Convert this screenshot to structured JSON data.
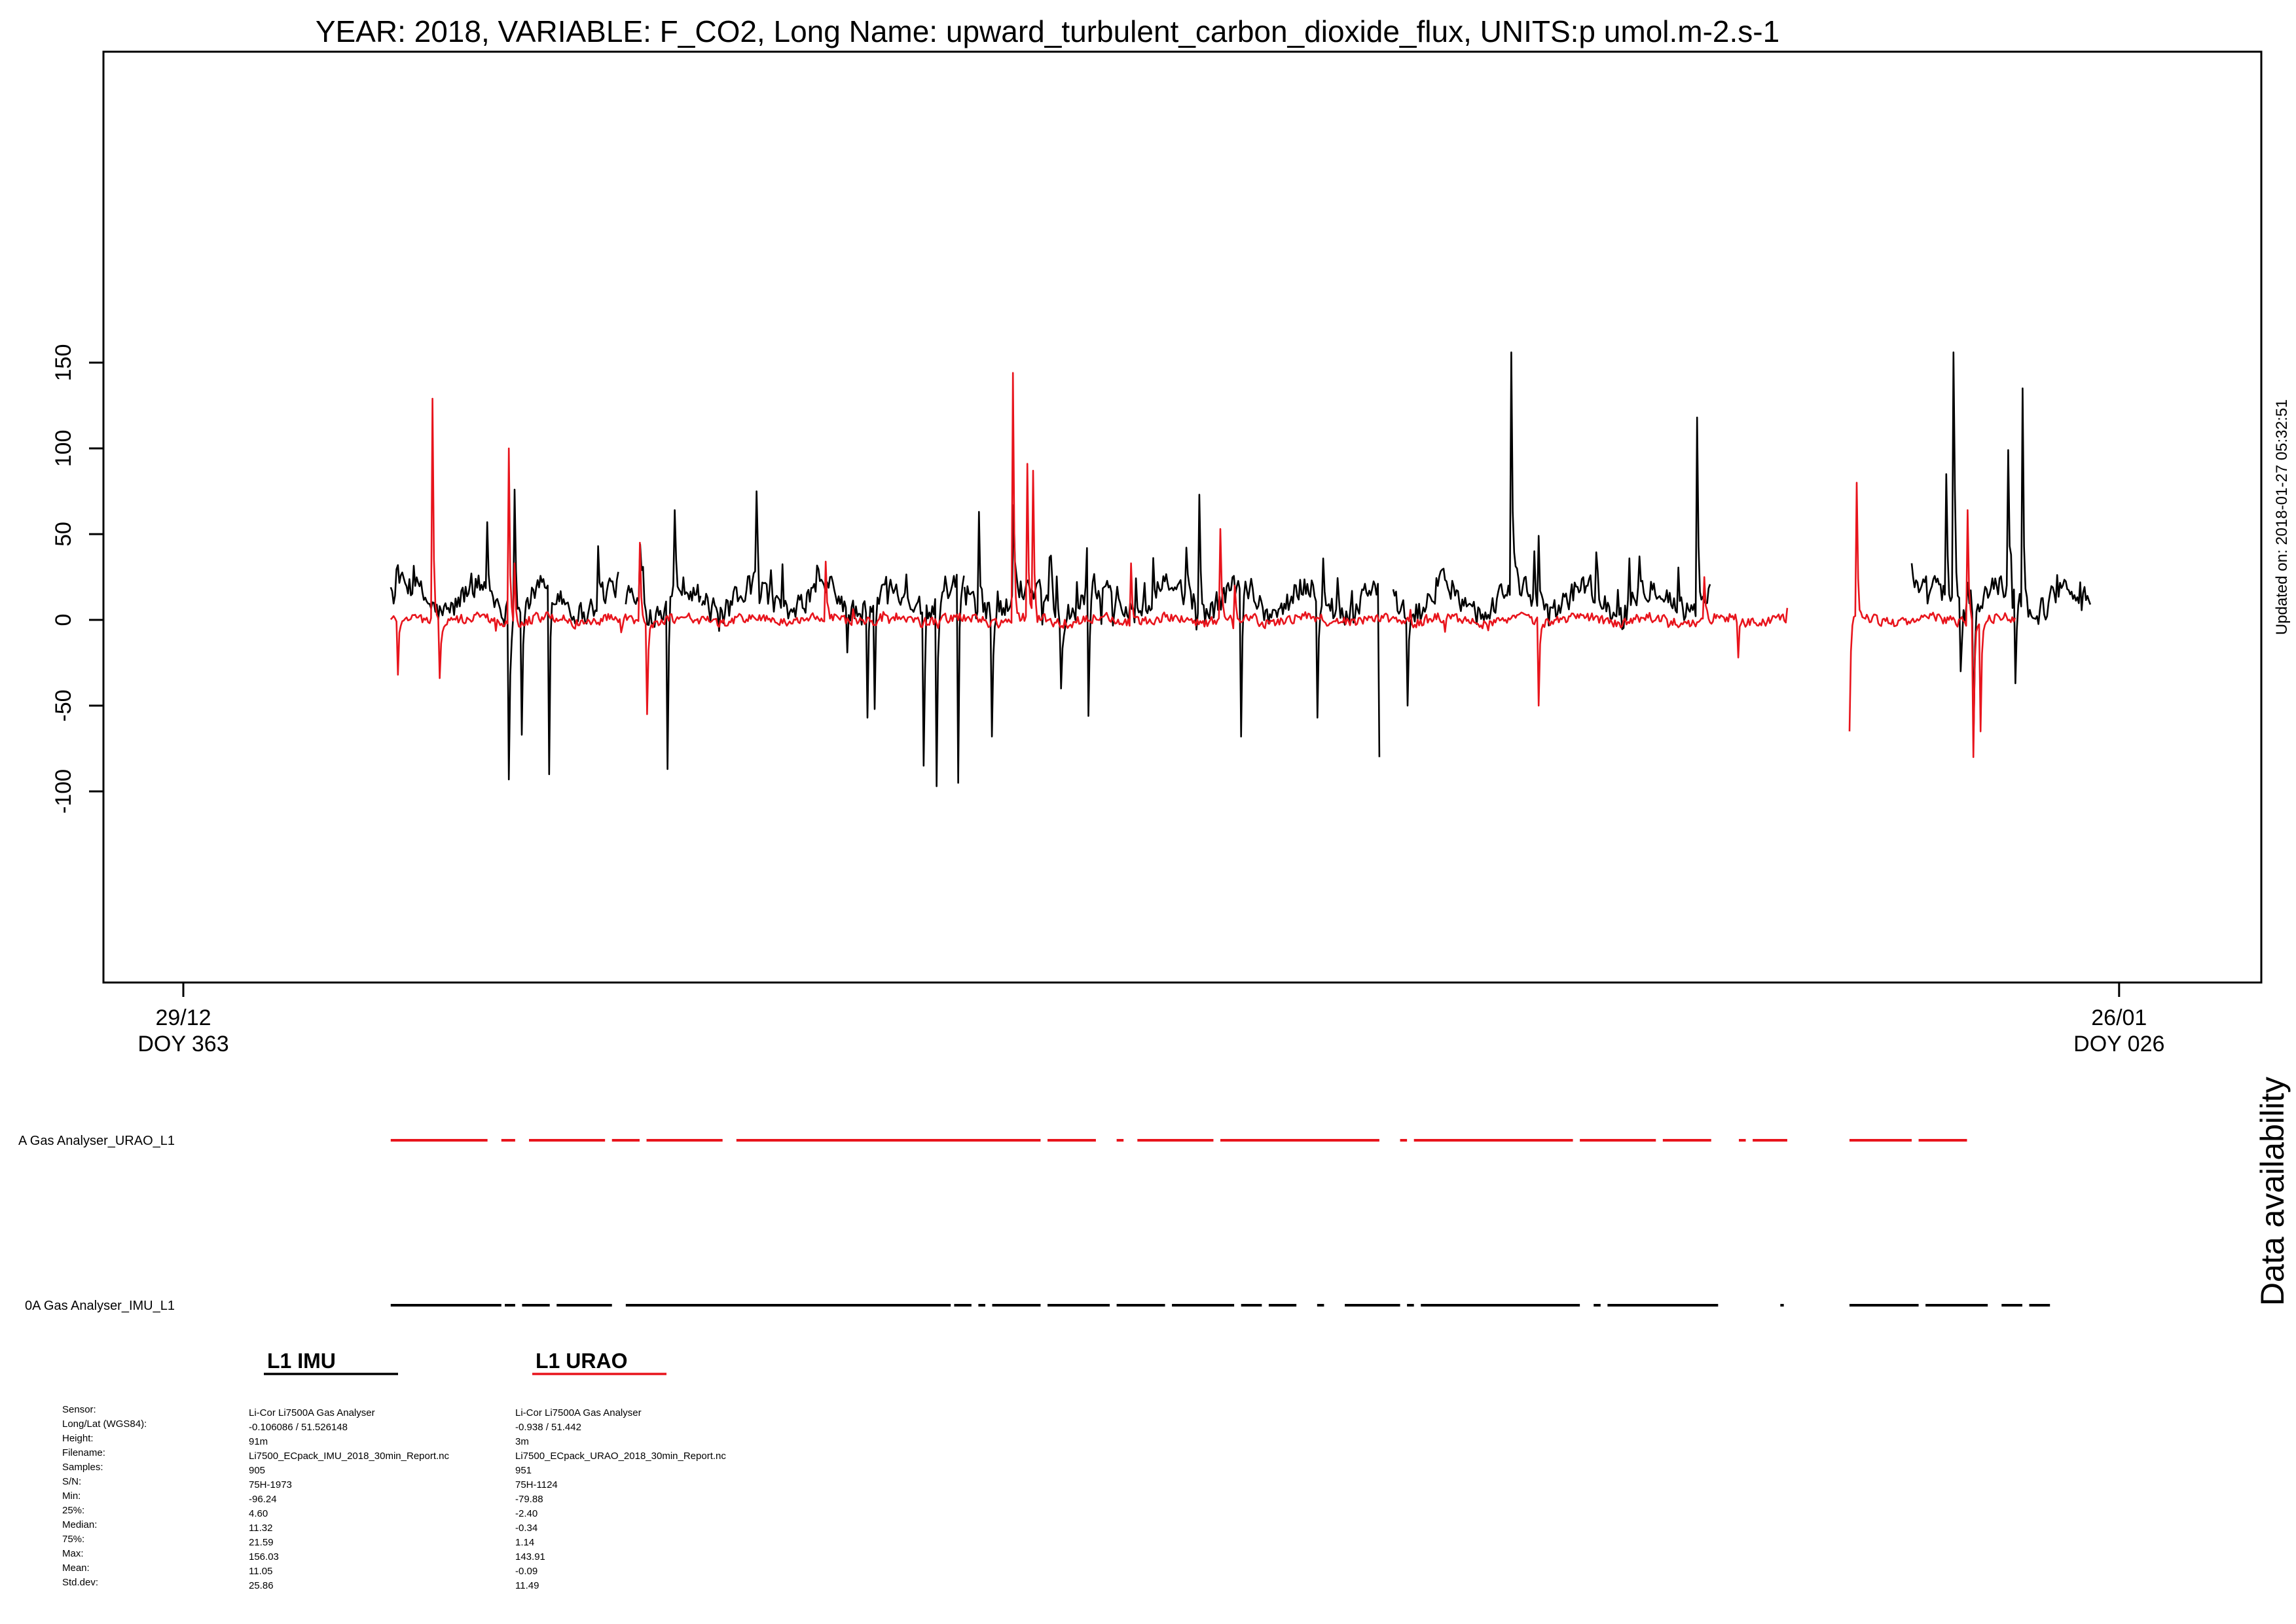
{
  "chart_data": {
    "type": "line",
    "title": "YEAR: 2018, VARIABLE: F_CO2, Long Name: upward_turbulent_carbon_dioxide_flux, UNITS:p umol.m-2.s-1",
    "updated": "Updated on: 2018-01-27 05:32:51",
    "ylim": [
      -105,
      165
    ],
    "yticks": [
      "150",
      "100",
      "50",
      "0",
      "-50",
      "-100"
    ],
    "ytick_values": [
      150,
      100,
      50,
      0,
      -50,
      -100
    ],
    "xlim": [
      -0.6,
      28.4
    ],
    "xticks": [
      {
        "value": 0,
        "date": "29/12",
        "doy": "DOY 363"
      },
      {
        "value": 28,
        "date": "26/01",
        "doy": "DOY 026"
      }
    ],
    "series": [
      {
        "name": "L1 IMU",
        "color": "#000000",
        "stats": {
          "samples": 905,
          "min": -96.24,
          "q25": 4.6,
          "median": 11.32,
          "q75": 21.59,
          "max": 156.03,
          "mean": 11.05,
          "std": 25.86
        },
        "segments": [
          {
            "start": 3.0,
            "end": 6.3,
            "peaks": [
              [
                4.4,
                57
              ],
              [
                4.7,
                -93
              ],
              [
                4.8,
                76
              ],
              [
                4.9,
                -67
              ],
              [
                5.3,
                -90
              ],
              [
                6.0,
                43
              ]
            ]
          },
          {
            "start": 6.4,
            "end": 7.5,
            "peaks": [
              [
                6.6,
                44
              ],
              [
                7.0,
                -87
              ],
              [
                7.1,
                64
              ]
            ]
          },
          {
            "start": 7.5,
            "end": 11.3,
            "peaks": [
              [
                8.3,
                75
              ],
              [
                8.5,
                29
              ],
              [
                9.6,
                -19
              ],
              [
                9.9,
                -57
              ],
              [
                10.0,
                -52
              ],
              [
                10.7,
                -85
              ],
              [
                10.9,
                -97
              ],
              [
                11.2,
                -95
              ]
            ]
          },
          {
            "start": 11.3,
            "end": 14.8,
            "peaks": [
              [
                11.5,
                63
              ],
              [
                11.7,
                -68
              ],
              [
                12.0,
                67
              ],
              [
                12.7,
                -40
              ],
              [
                13.1,
                -56
              ],
              [
                14.7,
                73
              ]
            ]
          },
          {
            "start": 14.8,
            "end": 17.3,
            "peaks": [
              [
                15.3,
                -68
              ],
              [
                16.4,
                -57
              ],
              [
                17.3,
                -80
              ]
            ]
          },
          {
            "start": 17.5,
            "end": 22.1,
            "peaks": [
              [
                17.7,
                -50
              ],
              [
                19.2,
                156
              ],
              [
                19.6,
                49
              ],
              [
                21.9,
                118
              ],
              [
                22.1,
                -37
              ]
            ]
          },
          {
            "start": 25.0,
            "end": 27.6,
            "peaks": [
              [
                25.0,
                33
              ],
              [
                25.5,
                85
              ],
              [
                25.6,
                156
              ],
              [
                25.7,
                -30
              ],
              [
                25.9,
                -65
              ],
              [
                26.4,
                99
              ],
              [
                26.5,
                -37
              ],
              [
                26.6,
                135
              ]
            ]
          }
        ]
      },
      {
        "name": "L1 URAO",
        "color": "#e8141c",
        "stats": {
          "samples": 951,
          "min": -79.88,
          "q25": -2.4,
          "median": -0.34,
          "q75": 1.14,
          "max": 143.91,
          "mean": -0.09,
          "std": 11.49
        },
        "segments": [
          {
            "start": 3.0,
            "end": 22.2,
            "peaks": [
              [
                3.1,
                -32
              ],
              [
                3.6,
                129
              ],
              [
                3.7,
                -34
              ],
              [
                4.7,
                100
              ],
              [
                4.8,
                33
              ],
              [
                6.6,
                45
              ],
              [
                6.7,
                -55
              ],
              [
                9.3,
                34
              ],
              [
                12.0,
                144
              ],
              [
                12.2,
                91
              ],
              [
                12.3,
                87
              ],
              [
                13.7,
                33
              ],
              [
                15.0,
                53
              ],
              [
                15.2,
                20
              ],
              [
                19.6,
                -50
              ],
              [
                22.0,
                25
              ]
            ]
          },
          {
            "start": 22.2,
            "end": 23.2,
            "peaks": [
              [
                22.5,
                -22
              ],
              [
                23.2,
                7
              ]
            ]
          },
          {
            "start": 24.1,
            "end": 26.5,
            "peaks": [
              [
                24.1,
                -65
              ],
              [
                24.2,
                80
              ],
              [
                25.8,
                64
              ],
              [
                25.9,
                -80
              ],
              [
                26.0,
                -65
              ]
            ]
          }
        ]
      }
    ]
  },
  "availability": {
    "label": "Data availability",
    "rows": [
      {
        "label": "A Gas Analyser_URAO_L1",
        "color": "#e8141c",
        "segments": [
          [
            3.0,
            4.4
          ],
          [
            4.6,
            4.8
          ],
          [
            5.0,
            6.1
          ],
          [
            6.2,
            6.6
          ],
          [
            6.7,
            7.8
          ],
          [
            8.0,
            12.4
          ],
          [
            12.5,
            13.2
          ],
          [
            13.5,
            13.6
          ],
          [
            13.8,
            14.9
          ],
          [
            15.0,
            17.3
          ],
          [
            17.6,
            17.7
          ],
          [
            17.8,
            20.1
          ],
          [
            20.2,
            21.3
          ],
          [
            21.4,
            22.1
          ],
          [
            22.5,
            22.6
          ],
          [
            22.7,
            23.2
          ],
          [
            24.1,
            25.0
          ],
          [
            25.1,
            25.8
          ]
        ]
      },
      {
        "label": "0A Gas Analyser_IMU_L1",
        "color": "#000000",
        "segments": [
          [
            3.0,
            4.6
          ],
          [
            4.65,
            4.8
          ],
          [
            4.9,
            5.3
          ],
          [
            5.4,
            6.2
          ],
          [
            6.4,
            11.1
          ],
          [
            11.15,
            11.4
          ],
          [
            11.5,
            11.6
          ],
          [
            11.7,
            12.4
          ],
          [
            12.5,
            13.4
          ],
          [
            13.5,
            14.2
          ],
          [
            14.3,
            15.2
          ],
          [
            15.3,
            15.6
          ],
          [
            15.7,
            16.1
          ],
          [
            16.4,
            16.5
          ],
          [
            16.8,
            17.6
          ],
          [
            17.7,
            17.8
          ],
          [
            17.9,
            20.2
          ],
          [
            20.4,
            20.5
          ],
          [
            20.6,
            22.2
          ],
          [
            23.1,
            23.15
          ],
          [
            24.1,
            25.1
          ],
          [
            25.2,
            26.1
          ],
          [
            26.3,
            26.6
          ],
          [
            26.7,
            27.0
          ]
        ]
      }
    ]
  },
  "legend": [
    {
      "label": "L1 IMU",
      "color": "#000000"
    },
    {
      "label": "L1 URAO",
      "color": "#e8141c"
    }
  ],
  "info": {
    "labels": [
      "Sensor:",
      "Long/Lat (WGS84):",
      "Height:",
      "Filename:",
      "Samples:",
      "S/N:",
      "Min:",
      "25%:",
      "Median:",
      "75%:",
      "Max:",
      "Mean:",
      "Std.dev:"
    ],
    "imu": [
      "Li-Cor Li7500A Gas Analyser",
      " -0.106086 / 51.526148",
      "91m",
      "Li7500_ECpack_IMU_2018_30min_Report.nc",
      "905",
      "75H-1973",
      "-96.24",
      "4.60",
      "11.32",
      "21.59",
      "156.03",
      "11.05",
      "25.86"
    ],
    "urao": [
      "Li-Cor Li7500A Gas Analyser",
      " -0.938 / 51.442",
      "3m",
      "Li7500_ECpack_URAO_2018_30min_Report.nc",
      "951",
      "75H-1124",
      "-79.88",
      "-2.40",
      "-0.34",
      "1.14",
      "143.91",
      "-0.09",
      "11.49"
    ]
  }
}
